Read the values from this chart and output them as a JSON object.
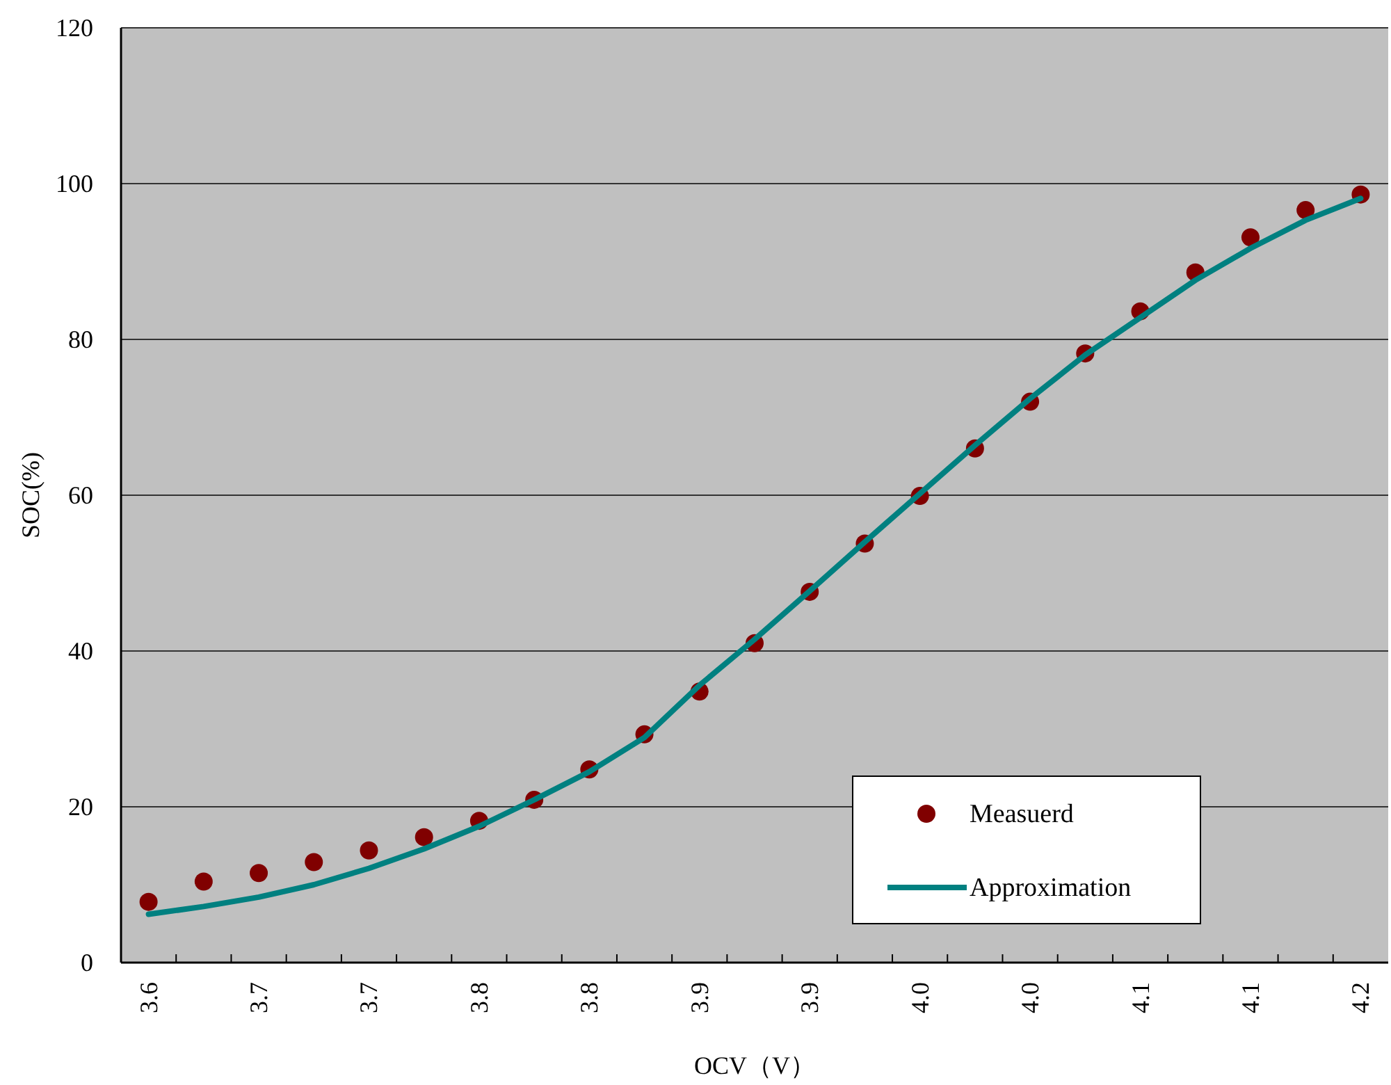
{
  "chart_data": {
    "type": "scatter",
    "xlabel": "OCV（V）",
    "ylabel": "SOC(%)",
    "categories": [
      "3.6",
      null,
      "3.7",
      null,
      "3.7",
      null,
      "3.8",
      null,
      "3.8",
      null,
      "3.9",
      null,
      "3.9",
      null,
      "4.0",
      null,
      "4.0",
      null,
      "4.1",
      null,
      "4.1",
      null,
      "4.2"
    ],
    "series": [
      {
        "name": "Measuerd",
        "type": "scatter",
        "color": "#800000",
        "marker": "circle",
        "values": [
          7.8,
          10.4,
          11.5,
          12.9,
          14.4,
          16.1,
          18.2,
          20.9,
          24.8,
          29.3,
          34.8,
          41.0,
          47.6,
          53.8,
          59.9,
          66.0,
          72.0,
          78.2,
          83.6,
          88.6,
          93.1,
          96.6,
          98.6
        ]
      },
      {
        "name": "Approximation",
        "type": "line",
        "color": "#008080",
        "marker": "none",
        "line_style": "solid",
        "values": [
          6.2,
          7.2,
          8.4,
          10.0,
          12.1,
          14.6,
          17.5,
          20.9,
          24.5,
          28.9,
          35.6,
          41.5,
          47.7,
          54.0,
          60.2,
          66.4,
          72.4,
          78.0,
          82.8,
          87.6,
          91.7,
          95.3,
          98.1
        ]
      }
    ],
    "ylim": [
      0,
      120
    ],
    "yticks": [
      0,
      20,
      40,
      60,
      80,
      100,
      120
    ],
    "grid": "y",
    "legend": "bottom right"
  }
}
